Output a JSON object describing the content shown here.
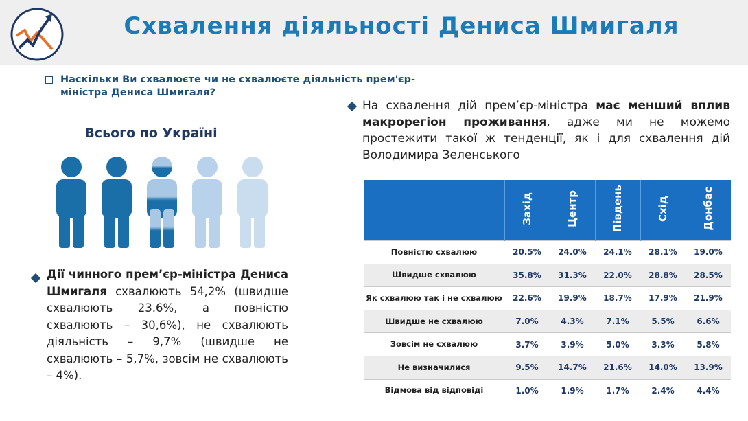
{
  "header": {
    "title": "Схвалення діяльності Дениса Шмигаля"
  },
  "question": "Наскільки Ви схвалюєте чи не схвалюєте діяльність прем'єр-міністра Дениса Шмигаля?",
  "subtitle": "Всього по Україні",
  "left_text": {
    "bold": "Дії чинного прем’єр-міністра Дениса Шмигаля",
    "normal": " схвалюють 54,2% (швидше схвалюють 23.6%, а повністю схвалюють – 30,6%), не схвалюють діяльність – 9,7% (швидше не схвалюють – 5,7%, зовсім не схвалюють – 4%)."
  },
  "right_text": {
    "part1": "На схвалення дій прем’єр-міністра ",
    "bold": "має менший вплив макрорегіон проживання",
    "part2": ", адже ми не можемо простежити такої ж тенденції, як і для схвалення дій Володимира Зеленського"
  },
  "table": {
    "columns": [
      "Захід",
      "Центр",
      "Південь",
      "Схід",
      "Донбас"
    ],
    "rows": [
      [
        "Повністю схвалюю",
        "20.5%",
        "24.0%",
        "24.1%",
        "28.1%",
        "19.0%"
      ],
      [
        "Швидше схвалюю",
        "35.8%",
        "31.3%",
        "22.0%",
        "28.8%",
        "28.5%"
      ],
      [
        "Як схвалюю так і не схвалюю",
        "22.6%",
        "19.9%",
        "18.7%",
        "17.9%",
        "21.9%"
      ],
      [
        "Швидше не схвалюю",
        "7.0%",
        "4.3%",
        "7.1%",
        "5.5%",
        "6.6%"
      ],
      [
        "Зовсім не схвалюю",
        "3.7%",
        "3.9%",
        "5.0%",
        "3.3%",
        "5.8%"
      ],
      [
        "Не визначилися",
        "9.5%",
        "14.7%",
        "21.6%",
        "14.0%",
        "13.9%"
      ],
      [
        "Відмова від відповіді",
        "1.0%",
        "1.9%",
        "1.7%",
        "2.4%",
        "4.4%"
      ]
    ]
  }
}
